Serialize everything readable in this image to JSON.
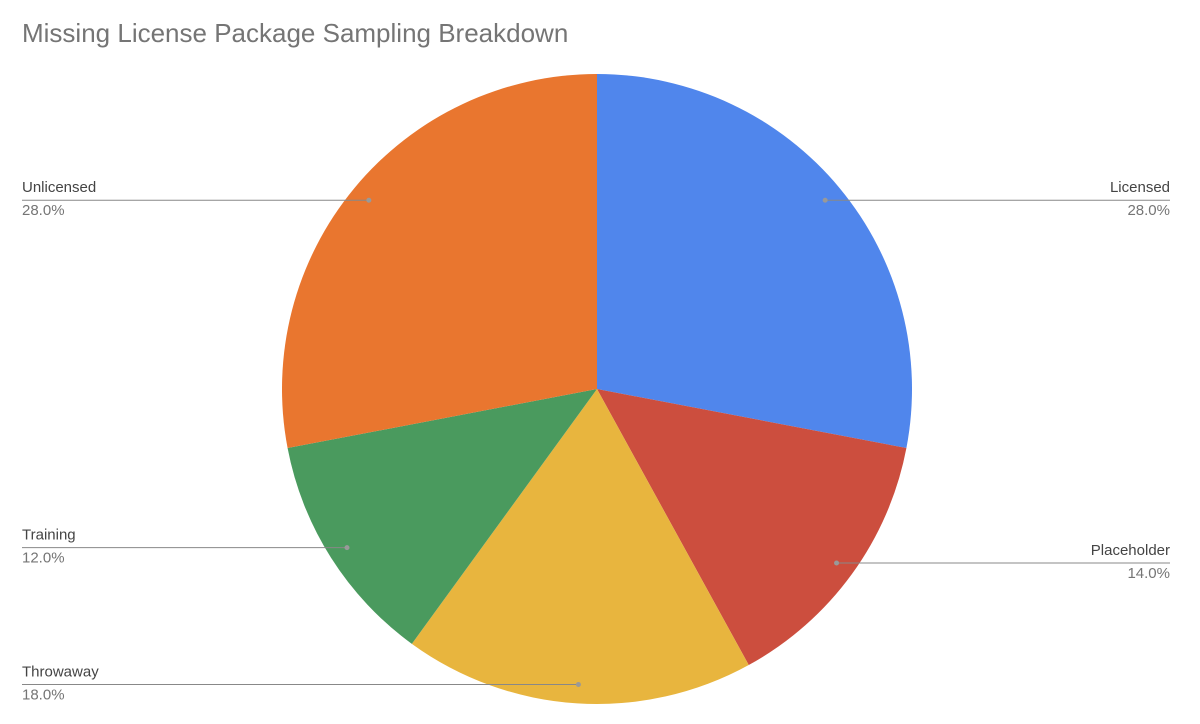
{
  "chart_data": {
    "type": "pie",
    "title": "Missing License Package Sampling Breakdown",
    "categories": [
      "Licensed",
      "Placeholder",
      "Throwaway",
      "Training",
      "Unlicensed"
    ],
    "values": [
      28,
      14,
      18,
      12,
      28
    ],
    "value_labels": [
      "28.0%",
      "14.0%",
      "18.0%",
      "12.0%",
      "28.0%"
    ],
    "colors": [
      "#5086ec",
      "#cc4e3e",
      "#e8b53e",
      "#4a9a5e",
      "#e9762f"
    ]
  }
}
